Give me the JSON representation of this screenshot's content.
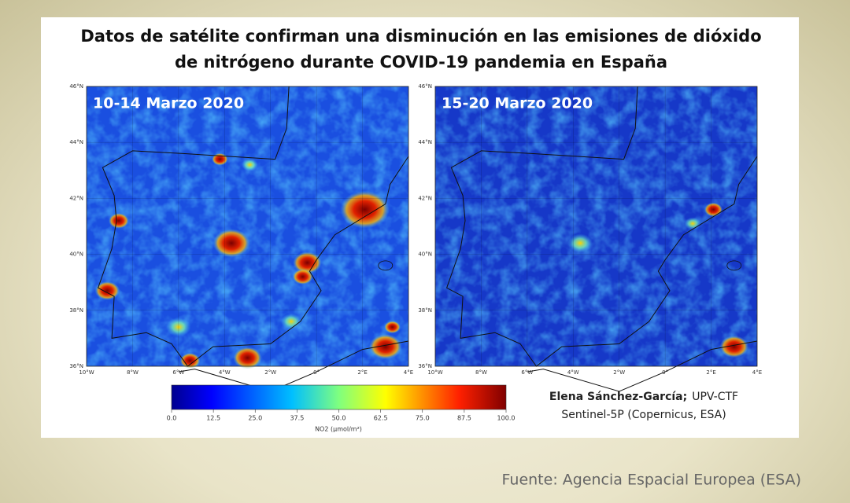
{
  "title": [
    "Datos de satélite confirman una disminución en las emisiones de dióxido",
    "de nitrógeno durante COVID-19 pandemia en España"
  ],
  "panels": [
    {
      "label": "10-14 Marzo 2020"
    },
    {
      "label": "15-20 Marzo 2020"
    }
  ],
  "lat_ticks": [
    "46°N",
    "44°N",
    "42°N",
    "40°N",
    "38°N",
    "36°N"
  ],
  "lon_ticks": [
    "10°W",
    "8°W",
    "6°W",
    "4°W",
    "2°W",
    "0°",
    "2°E",
    "4°E"
  ],
  "colorbar": {
    "ticks": [
      "0.0",
      "12.5",
      "25.0",
      "37.5",
      "50.0",
      "62.5",
      "75.0",
      "87.5",
      "100.0"
    ],
    "label": "NO2 (µmol/m²)"
  },
  "credits": {
    "author": "Elena Sánchez-García;",
    "affiliation": "UPV-CTF",
    "source": "Sentinel-5P (Copernicus, ESA)"
  },
  "footer": "Fuente: Agencia Espacial Europea (ESA)"
}
